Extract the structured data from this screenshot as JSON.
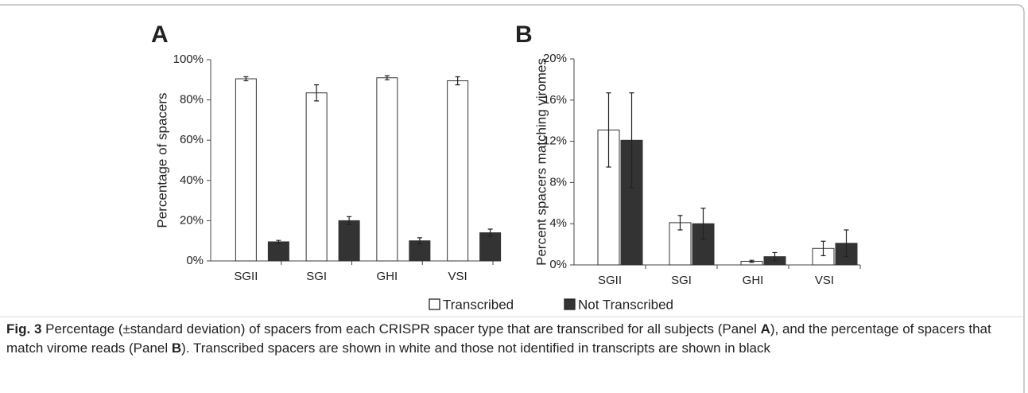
{
  "chart_data": [
    {
      "type": "bar",
      "panel": "A",
      "y_label": "Percentage of spacers",
      "categories": [
        "SGII",
        "SGI",
        "GHI",
        "VSI"
      ],
      "series": [
        {
          "name": "Transcribed",
          "color": "#ffffff",
          "values": [
            90.5,
            83.5,
            91,
            89.5
          ],
          "errors": [
            1,
            4,
            1,
            2
          ]
        },
        {
          "name": "Not Transcribed",
          "color": "#333333",
          "values": [
            9.5,
            20,
            10,
            14
          ],
          "errors": [
            0.7,
            2,
            1.5,
            1.8
          ]
        }
      ],
      "ylim": [
        0,
        100
      ],
      "yticks": [
        {
          "value": 0,
          "label": "0%"
        },
        {
          "value": 20,
          "label": "20%"
        },
        {
          "value": 40,
          "label": "40%"
        },
        {
          "value": 60,
          "label": "60%"
        },
        {
          "value": 80,
          "label": "80%"
        },
        {
          "value": 100,
          "label": "100%"
        }
      ],
      "grid": false
    },
    {
      "type": "bar",
      "panel": "B",
      "y_label": "Percent spacers matching viromes",
      "categories": [
        "SGII",
        "SGI",
        "GHI",
        "VSI"
      ],
      "series": [
        {
          "color": "#ffffff",
          "values": [
            13.1,
            4.1,
            0.35,
            1.6
          ],
          "errors": [
            3.6,
            0.7,
            0.1,
            0.7
          ]
        },
        {
          "color": "#333333",
          "values": [
            12.1,
            4.0,
            0.8,
            2.1
          ],
          "errors": [
            4.6,
            1.5,
            0.4,
            1.3
          ]
        }
      ],
      "ylim": [
        0,
        20
      ],
      "yticks": [
        {
          "value": 0,
          "label": "0%"
        },
        {
          "value": 4,
          "label": "4%"
        },
        {
          "value": 8,
          "label": "8%"
        },
        {
          "value": 12,
          "label": "12%"
        },
        {
          "value": 16,
          "label": "16%"
        },
        {
          "value": 20,
          "label": "20%"
        }
      ],
      "grid": false
    }
  ],
  "caption": {
    "label": "Fig. 3",
    "segments": [
      "Percentage (±standard deviation) of spacers from each CRISPR spacer type that are transcribed for all subjects (Panel ",
      "A",
      "), and the percentage of spacers that match virome reads (Panel ",
      "B",
      "). Transcribed spacers are shown in white and those not identified in transcripts are shown in black"
    ]
  }
}
